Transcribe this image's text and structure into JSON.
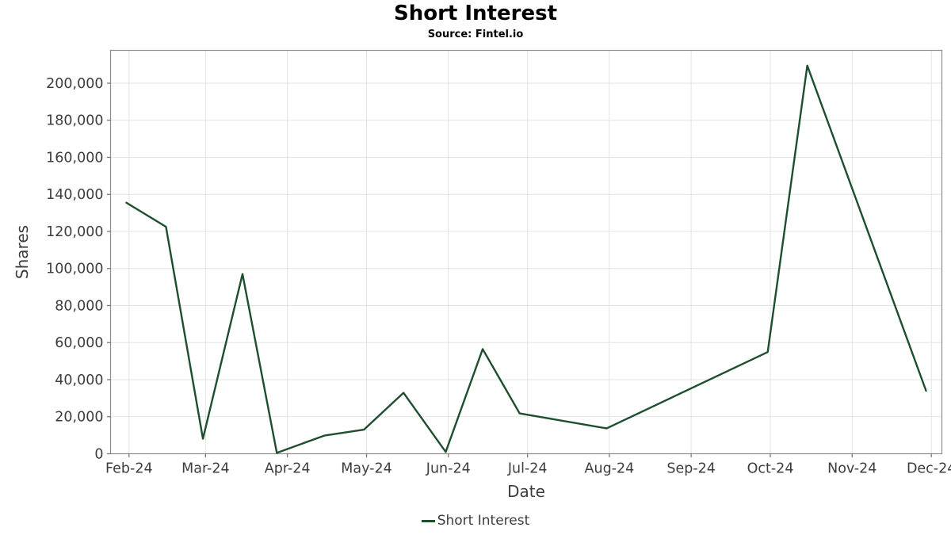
{
  "title": "Short Interest",
  "source": "Source: Fintel.io",
  "legend": {
    "label": "Short Interest"
  },
  "colors": {
    "line": "#1d4f2e",
    "grid": "#e3e3e3",
    "spine": "#8c8c8c",
    "tick_mark": "#707070",
    "tick_text": "#3d3d3d"
  },
  "chart_data": {
    "type": "line",
    "title": "Short Interest",
    "subtitle": "Source: Fintel.io",
    "xlabel": "Date",
    "ylabel": "Shares",
    "legend_position": "bottom-center",
    "grid": true,
    "x_domain": [
      "2024-01-25",
      "2024-12-05"
    ],
    "ylim": [
      0,
      217750
    ],
    "y_ticks": [
      0,
      20000,
      40000,
      60000,
      80000,
      100000,
      120000,
      140000,
      160000,
      180000,
      200000
    ],
    "x_ticks": [
      {
        "date": "2024-02-01",
        "label": "Feb-24"
      },
      {
        "date": "2024-03-01",
        "label": "Mar-24"
      },
      {
        "date": "2024-04-01",
        "label": "Apr-24"
      },
      {
        "date": "2024-05-01",
        "label": "May-24"
      },
      {
        "date": "2024-06-01",
        "label": "Jun-24"
      },
      {
        "date": "2024-07-01",
        "label": "Jul-24"
      },
      {
        "date": "2024-08-01",
        "label": "Aug-24"
      },
      {
        "date": "2024-09-01",
        "label": "Sep-24"
      },
      {
        "date": "2024-10-01",
        "label": "Oct-24"
      },
      {
        "date": "2024-11-01",
        "label": "Nov-24"
      },
      {
        "date": "2024-12-01",
        "label": "Dec-24"
      }
    ],
    "series": [
      {
        "name": "Short Interest",
        "points": [
          {
            "date": "2024-01-31",
            "value": 135500
          },
          {
            "date": "2024-02-15",
            "value": 122500
          },
          {
            "date": "2024-02-29",
            "value": 8100
          },
          {
            "date": "2024-03-15",
            "value": 97000
          },
          {
            "date": "2024-03-28",
            "value": 500
          },
          {
            "date": "2024-04-15",
            "value": 9800
          },
          {
            "date": "2024-04-30",
            "value": 13000
          },
          {
            "date": "2024-05-15",
            "value": 32900
          },
          {
            "date": "2024-05-31",
            "value": 1000
          },
          {
            "date": "2024-06-14",
            "value": 56500
          },
          {
            "date": "2024-06-28",
            "value": 21800
          },
          {
            "date": "2024-07-31",
            "value": 13700
          },
          {
            "date": "2024-09-30",
            "value": 54900
          },
          {
            "date": "2024-10-15",
            "value": 209500
          },
          {
            "date": "2024-11-29",
            "value": 34000
          }
        ]
      }
    ]
  }
}
